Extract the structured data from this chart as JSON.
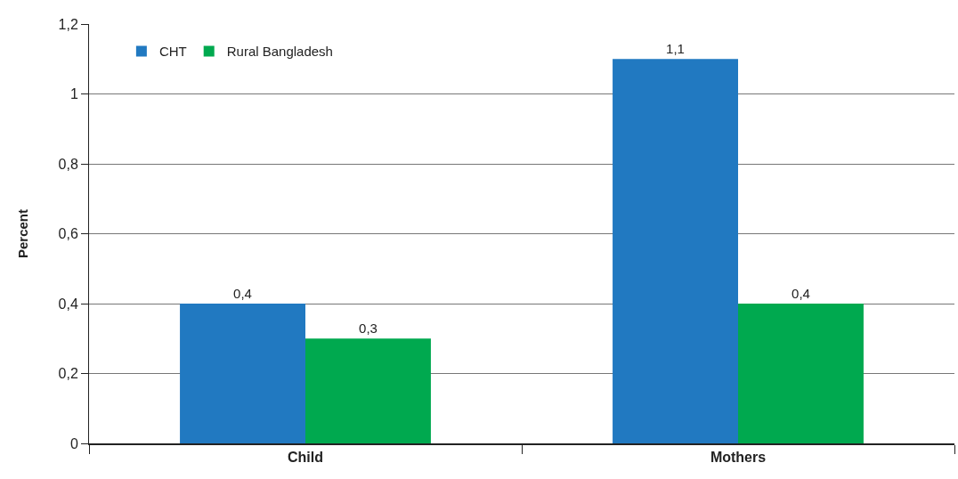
{
  "chart_data": {
    "type": "bar",
    "ylabel": "Percent",
    "categories": [
      "Child",
      "Mothers"
    ],
    "series": [
      {
        "name": "CHT",
        "color": "#2179c1",
        "values": [
          0.4,
          1.1
        ],
        "value_labels": [
          "0,4",
          "1,1"
        ]
      },
      {
        "name": "Rural Bangladesh",
        "color": "#00a94f",
        "values": [
          0.3,
          0.4
        ],
        "value_labels": [
          "0,3",
          "0,4"
        ]
      }
    ],
    "ylim": [
      0,
      1.2
    ],
    "yticks": [
      {
        "value": 0,
        "label": "0"
      },
      {
        "value": 0.2,
        "label": "0,2"
      },
      {
        "value": 0.4,
        "label": "0,4"
      },
      {
        "value": 0.6,
        "label": "0,6"
      },
      {
        "value": 0.8,
        "label": "0,8"
      },
      {
        "value": 1,
        "label": "1"
      },
      {
        "value": 1.2,
        "label": "1,2"
      }
    ],
    "grid": "y",
    "legend": "top left"
  }
}
